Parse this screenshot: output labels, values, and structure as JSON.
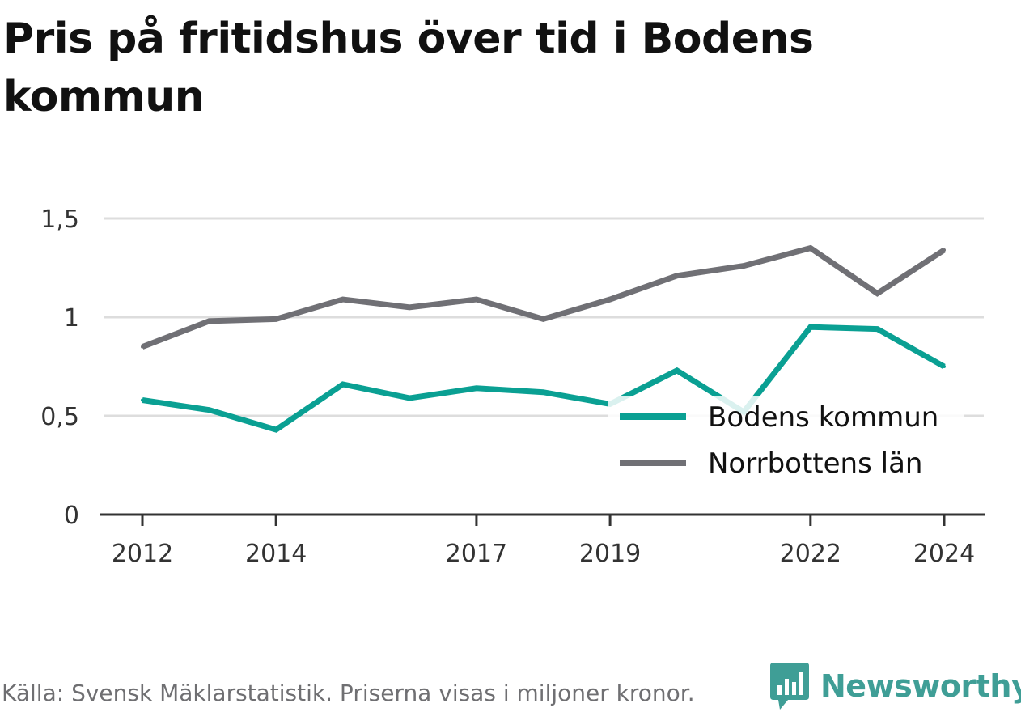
{
  "title": "Pris på fritidshus över tid i Bodens kommun",
  "source": "Källa: Svensk Mäklarstatistik. Priserna visas i miljoner kronor.",
  "brand": {
    "name": "Newsworthy",
    "icon": "newsworthy-logo-icon",
    "color": "#3f9e96"
  },
  "chart_data": {
    "type": "line",
    "x": [
      2012,
      2013,
      2014,
      2015,
      2016,
      2017,
      2018,
      2019,
      2020,
      2021,
      2022,
      2023,
      2024
    ],
    "x_tick_labels": [
      "2012",
      "2014",
      "2017",
      "2019",
      "2022",
      "2024"
    ],
    "x_tick_values": [
      2012,
      2014,
      2017,
      2019,
      2022,
      2024
    ],
    "y_tick_labels": [
      "0",
      "0,5",
      "1",
      "1,5"
    ],
    "y_tick_values": [
      0,
      0.5,
      1,
      1.5
    ],
    "ylim": [
      0,
      1.5
    ],
    "grid": true,
    "legend_position": "bottom-right",
    "series": [
      {
        "name": "Bodens kommun",
        "color": "#0aa093",
        "values": [
          0.58,
          0.53,
          0.43,
          0.66,
          0.59,
          0.64,
          0.62,
          0.56,
          0.73,
          0.52,
          0.95,
          0.94,
          0.75
        ]
      },
      {
        "name": "Norrbottens län",
        "color": "#707075",
        "values": [
          0.85,
          0.98,
          0.99,
          1.09,
          1.05,
          1.09,
          0.99,
          1.09,
          1.21,
          1.26,
          1.35,
          1.12,
          1.34
        ]
      }
    ]
  }
}
